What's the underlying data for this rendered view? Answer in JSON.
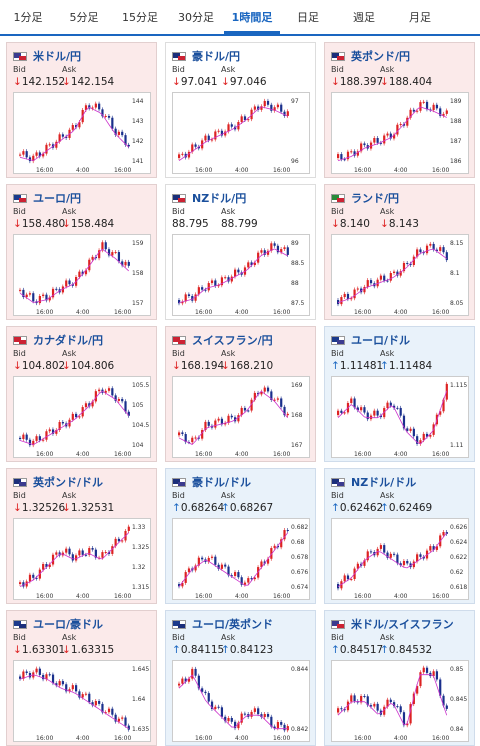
{
  "tabs": [
    "1分足",
    "5分足",
    "15分足",
    "30分足",
    "1時間足",
    "日足",
    "週足",
    "月足"
  ],
  "active_tab": "1時間足",
  "labels": {
    "bid": "Bid",
    "ask": "Ask"
  },
  "colors": {
    "up": "#d22",
    "down": "#1a2f8c",
    "ma": "#cc33cc",
    "ma2": "#3fb9a3"
  },
  "cards": [
    {
      "title": "米ドル/円",
      "flag": [
        "#3b3b8f",
        "#cc2233"
      ],
      "bg": "pink",
      "dir": "down",
      "bid": "142.152",
      "ask": "142.154",
      "yticks": [
        "144",
        "143",
        "142",
        "141"
      ],
      "xticks": [
        "16:00",
        "4:00",
        "16:00"
      ],
      "trend": [
        142.1,
        142.0,
        142.3,
        142.6,
        142.9,
        143.6,
        143.4,
        142.8,
        142.4
      ]
    },
    {
      "title": "豪ドル/円",
      "flag": [
        "#1b2e7a",
        "#cc2233"
      ],
      "bg": "white",
      "dir": "down",
      "bid": "97.041",
      "ask": "97.046",
      "yticks": [
        "97",
        "96"
      ],
      "xticks": [
        "16:00",
        "4:00",
        "16:00"
      ],
      "trend": [
        95.6,
        95.9,
        96.2,
        96.4,
        96.6,
        96.9,
        97.3,
        97.2,
        97.0
      ]
    },
    {
      "title": "英ポンド/円",
      "flag": [
        "#1b2e7a",
        "#cc2233"
      ],
      "bg": "pink",
      "dir": "down",
      "bid": "188.397",
      "ask": "188.404",
      "yticks": [
        "189",
        "188",
        "187",
        "186"
      ],
      "xticks": [
        "16:00",
        "4:00",
        "16:00"
      ],
      "trend": [
        186.4,
        186.6,
        187.0,
        187.2,
        187.5,
        188.2,
        188.9,
        188.7,
        188.4
      ]
    },
    {
      "title": "ユーロ/円",
      "flag": [
        "#1b3a8c",
        "#cc2233"
      ],
      "bg": "pink",
      "dir": "down",
      "bid": "158.480",
      "ask": "158.484",
      "yticks": [
        "159",
        "158",
        "157"
      ],
      "xticks": [
        "16:00",
        "4:00",
        "16:00"
      ],
      "trend": [
        157.8,
        157.5,
        157.6,
        157.9,
        158.1,
        158.6,
        159.2,
        158.9,
        158.5
      ]
    },
    {
      "title": "NZドル/円",
      "flag": [
        "#1b2e7a",
        "#cc2233"
      ],
      "bg": "white",
      "dir": "none",
      "bid": "88.795",
      "ask": "88.799",
      "yticks": [
        "89",
        "88.5",
        "88",
        "87.5"
      ],
      "xticks": [
        "16:00",
        "4:00",
        "16:00"
      ],
      "trend": [
        87.5,
        87.6,
        87.9,
        88.0,
        88.2,
        88.4,
        88.8,
        89.0,
        88.8
      ]
    },
    {
      "title": "ランド/円",
      "flag": [
        "#2a8c3a",
        "#cc2233"
      ],
      "bg": "pink",
      "dir": "down",
      "bid": "8.140",
      "ask": "8.143",
      "yticks": [
        "8.15",
        "8.1",
        "8.05"
      ],
      "xticks": [
        "16:00",
        "4:00",
        "16:00"
      ],
      "trend": [
        8.05,
        8.06,
        8.08,
        8.09,
        8.1,
        8.12,
        8.15,
        8.16,
        8.14
      ]
    },
    {
      "title": "カナダドル/円",
      "flag": [
        "#cc2233",
        "#cc2233"
      ],
      "bg": "pink",
      "dir": "down",
      "bid": "104.802",
      "ask": "104.806",
      "yticks": [
        "105.5",
        "105",
        "104.5",
        "104"
      ],
      "xticks": [
        "16:00",
        "4:00",
        "16:00"
      ],
      "trend": [
        104.2,
        104.1,
        104.3,
        104.5,
        104.7,
        105.0,
        105.4,
        105.2,
        104.8
      ]
    },
    {
      "title": "スイスフラン/円",
      "flag": [
        "#cc2233",
        "#cc2233"
      ],
      "bg": "pink",
      "dir": "down",
      "bid": "168.194",
      "ask": "168.210",
      "yticks": [
        "169",
        "168",
        "167"
      ],
      "xticks": [
        "16:00",
        "4:00",
        "16:00"
      ],
      "trend": [
        167.6,
        167.4,
        167.9,
        168.0,
        168.1,
        168.4,
        169.0,
        168.7,
        168.2
      ]
    },
    {
      "title": "ユーロ/ドル",
      "flag": [
        "#1b3a8c",
        "#3b3b8f"
      ],
      "bg": "blue",
      "dir": "up",
      "bid": "1.11481",
      "ask": "1.11484",
      "yticks": [
        "1.115",
        "1.11"
      ],
      "xticks": [
        "16:00",
        "4:00",
        "16:00"
      ],
      "trend": [
        1.112,
        1.113,
        1.112,
        1.112,
        1.113,
        1.111,
        1.11,
        1.111,
        1.114
      ]
    },
    {
      "title": "英ポンド/ドル",
      "flag": [
        "#1b2e7a",
        "#3b3b8f"
      ],
      "bg": "pink",
      "dir": "down",
      "bid": "1.32526",
      "ask": "1.32531",
      "yticks": [
        "1.33",
        "1.325",
        "1.32",
        "1.315"
      ],
      "xticks": [
        "16:00",
        "4:00",
        "16:00"
      ],
      "trend": [
        1.317,
        1.318,
        1.32,
        1.322,
        1.321,
        1.322,
        1.321,
        1.323,
        1.325
      ]
    },
    {
      "title": "豪ドル/ドル",
      "flag": [
        "#1b2e7a",
        "#3b3b8f"
      ],
      "bg": "blue",
      "dir": "up",
      "bid": "0.68264",
      "ask": "0.68267",
      "yticks": [
        "0.682",
        "0.68",
        "0.678",
        "0.676",
        "0.674"
      ],
      "xticks": [
        "16:00",
        "4:00",
        "16:00"
      ],
      "trend": [
        0.676,
        0.678,
        0.679,
        0.678,
        0.677,
        0.676,
        0.678,
        0.68,
        0.682
      ]
    },
    {
      "title": "NZドル/ドル",
      "flag": [
        "#1b2e7a",
        "#3b3b8f"
      ],
      "bg": "blue",
      "dir": "up",
      "bid": "0.62462",
      "ask": "0.62469",
      "yticks": [
        "0.626",
        "0.624",
        "0.622",
        "0.62",
        "0.618"
      ],
      "xticks": [
        "16:00",
        "4:00",
        "16:00"
      ],
      "trend": [
        0.619,
        0.62,
        0.622,
        0.623,
        0.622,
        0.621,
        0.622,
        0.623,
        0.625
      ]
    },
    {
      "title": "ユーロ/豪ドル",
      "flag": [
        "#1b3a8c",
        "#1b2e7a"
      ],
      "bg": "pink",
      "dir": "down",
      "bid": "1.63301",
      "ask": "1.63315",
      "yticks": [
        "1.645",
        "1.64",
        "1.635"
      ],
      "xticks": [
        "16:00",
        "4:00",
        "16:00"
      ],
      "trend": [
        1.644,
        1.645,
        1.644,
        1.642,
        1.641,
        1.639,
        1.637,
        1.635,
        1.633
      ]
    },
    {
      "title": "ユーロ/英ポンド",
      "flag": [
        "#1b3a8c",
        "#1b2e7a"
      ],
      "bg": "blue",
      "dir": "up",
      "bid": "0.84115",
      "ask": "0.84123",
      "yticks": [
        "0.844",
        "0.842"
      ],
      "xticks": [
        "16:00",
        "4:00",
        "16:00"
      ],
      "trend": [
        0.844,
        0.845,
        0.843,
        0.842,
        0.841,
        0.842,
        0.842,
        0.841,
        0.841
      ]
    },
    {
      "title": "米ドル/スイスフラン",
      "flag": [
        "#3b3b8f",
        "#cc2233"
      ],
      "bg": "blue",
      "dir": "up",
      "bid": "0.84517",
      "ask": "0.84532",
      "yticks": [
        "0.85",
        "0.845",
        "0.84"
      ],
      "xticks": [
        "16:00",
        "4:00",
        "16:00"
      ],
      "trend": [
        0.845,
        0.846,
        0.846,
        0.845,
        0.846,
        0.844,
        0.848,
        0.848,
        0.845
      ]
    }
  ]
}
